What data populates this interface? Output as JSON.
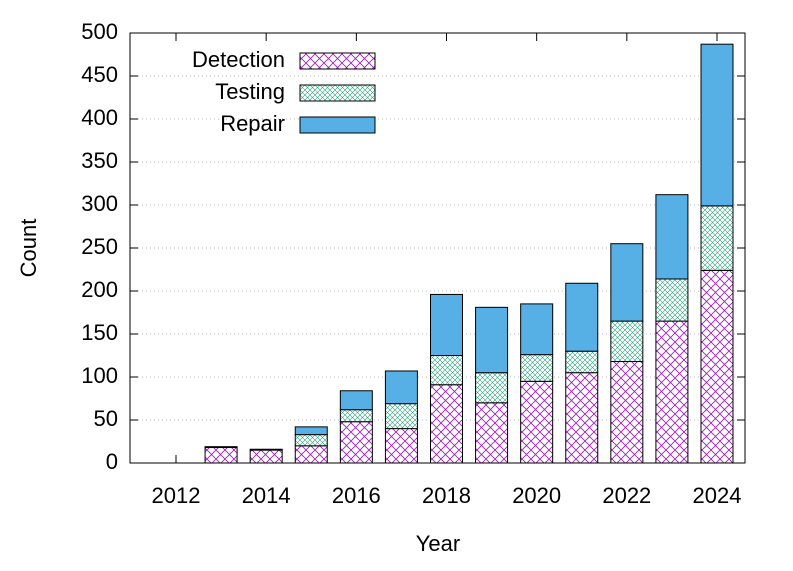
{
  "chart_data": {
    "type": "stacked-bar",
    "x_label": "Year",
    "y_label": "Count",
    "categories": [
      "2012",
      null,
      "2014",
      null,
      "2016",
      null,
      "2018",
      null,
      "2020",
      null,
      "2022",
      null,
      "2024"
    ],
    "series": [
      {
        "name": "Detection",
        "color": "#a020c0",
        "values": [
          0,
          18,
          15,
          20,
          48,
          40,
          91,
          70,
          95,
          105,
          118,
          165,
          224
        ]
      },
      {
        "name": "Testing",
        "color": "#2aa37a",
        "values": [
          0,
          0,
          0,
          13,
          14,
          29,
          34,
          35,
          31,
          25,
          47,
          49,
          75
        ]
      },
      {
        "name": "Repair",
        "color": "#56b0e6",
        "values": [
          0,
          1,
          1,
          9,
          22,
          38,
          71,
          76,
          59,
          79,
          90,
          98,
          188
        ]
      }
    ],
    "ylim": [
      0,
      500
    ],
    "yticks": [
      0,
      50,
      100,
      150,
      200,
      250,
      300,
      350,
      400,
      450,
      500
    ],
    "grid": true,
    "legend": "top-left"
  }
}
